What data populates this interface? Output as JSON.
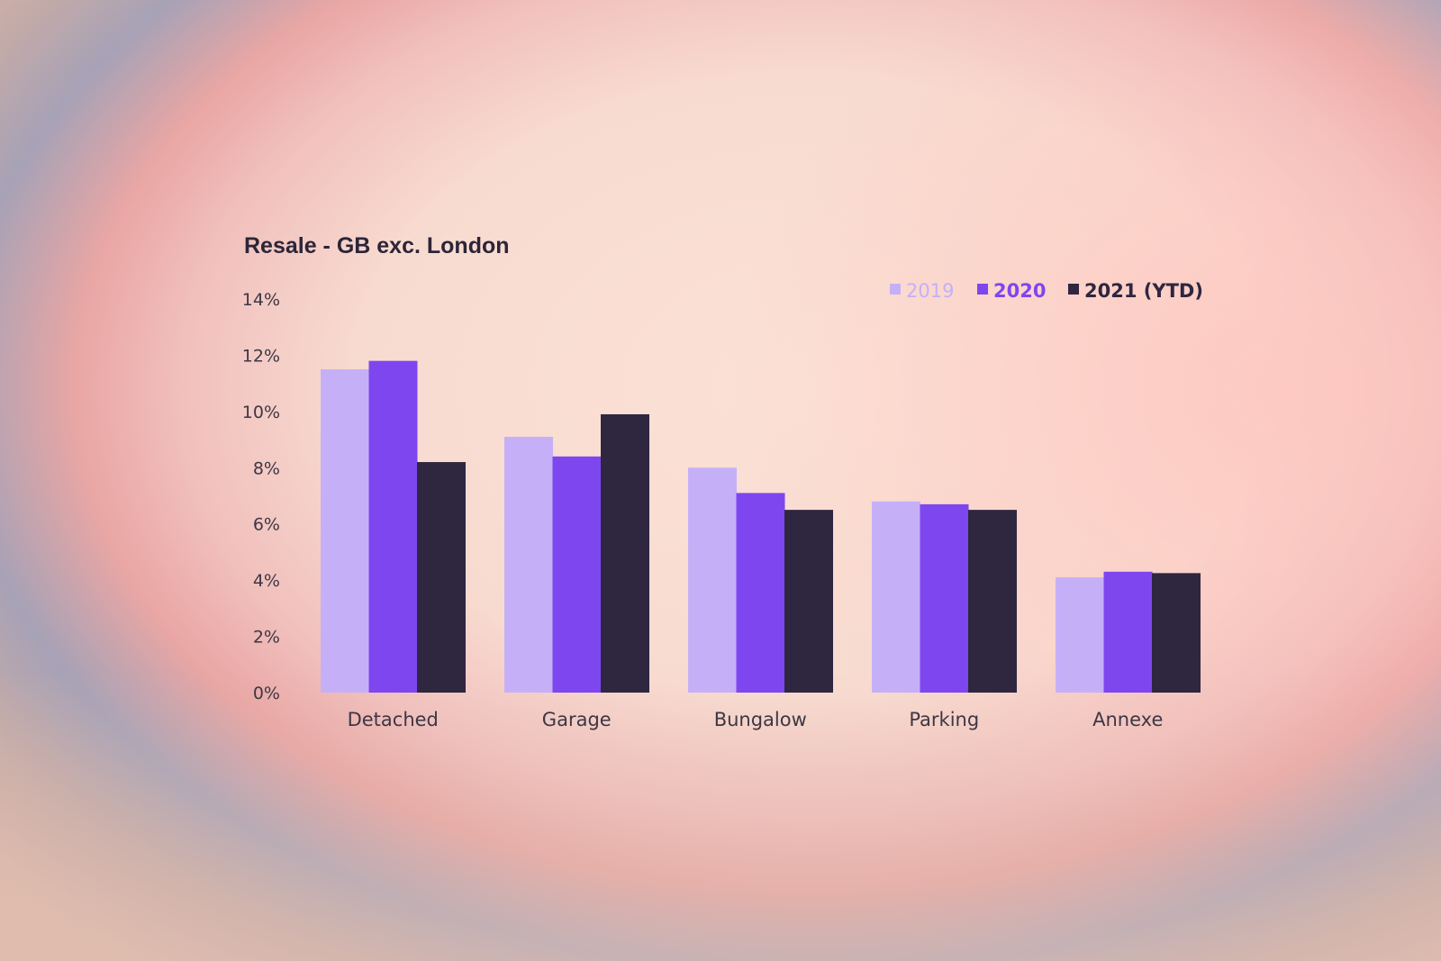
{
  "chart_data": {
    "type": "bar",
    "title": "Resale - GB exc. London",
    "categories": [
      "Detached",
      "Garage",
      "Bungalow",
      "Parking",
      "Annexe"
    ],
    "series": [
      {
        "name": "2019",
        "color": "#c5b0f8",
        "values": [
          11.5,
          9.1,
          8.0,
          6.8,
          4.1
        ]
      },
      {
        "name": "2020",
        "color": "#7e46ef",
        "values": [
          11.8,
          8.4,
          7.1,
          6.7,
          4.3
        ]
      },
      {
        "name": "2021 (YTD)",
        "color": "#2f2640",
        "values": [
          8.2,
          9.9,
          6.5,
          6.5,
          4.25
        ]
      }
    ],
    "ylim": [
      0,
      14
    ],
    "yticks": [
      "0%",
      "2%",
      "4%",
      "6%",
      "8%",
      "10%",
      "12%",
      "14%"
    ],
    "legend_position": "top-right",
    "grid": false
  }
}
